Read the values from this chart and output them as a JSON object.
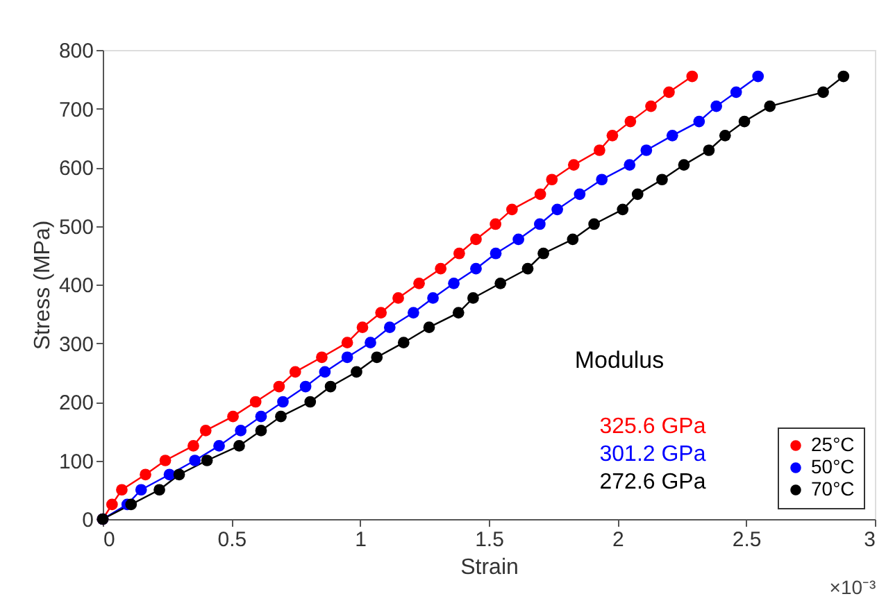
{
  "chart_data": {
    "type": "line",
    "xlabel": "Strain",
    "ylabel": "Stress (MPa)",
    "xlim": [
      0,
      3
    ],
    "xticks": [
      0,
      0.5,
      1,
      1.5,
      2,
      2.5,
      3
    ],
    "ylim": [
      0,
      800
    ],
    "yticks": [
      0,
      100,
      200,
      300,
      400,
      500,
      600,
      700,
      800
    ],
    "marker": "circle",
    "line_style": "solid",
    "grid": false,
    "legend": "bottom right",
    "annotations": [
      "Modulus",
      "325.6 GPa",
      "301.2 GPa",
      "272.6 GPa",
      "×10⁻³"
    ],
    "series": [
      {
        "name": "25°C",
        "color": "#ff0000",
        "x": [
          0,
          0.036,
          0.074,
          0.166,
          0.243,
          0.352,
          0.4,
          0.506,
          0.594,
          0.685,
          0.748,
          0.851,
          0.95,
          1.009,
          1.081,
          1.148,
          1.229,
          1.313,
          1.385,
          1.45,
          1.526,
          1.59,
          1.7,
          1.745,
          1.83,
          1.93,
          1.98,
          2.05,
          2.13,
          2.2,
          2.29
        ],
        "values": [
          0,
          25,
          50,
          76,
          100,
          125,
          151,
          175,
          200,
          226,
          251,
          276,
          301,
          327,
          352,
          377,
          402,
          427,
          453,
          477,
          503,
          528,
          554,
          579,
          604,
          629,
          654,
          678,
          704,
          728,
          755
        ]
      },
      {
        "name": "50°C",
        "color": "#0000ff",
        "x": [
          0,
          0.095,
          0.149,
          0.259,
          0.358,
          0.452,
          0.536,
          0.615,
          0.7,
          0.788,
          0.863,
          0.95,
          1.04,
          1.115,
          1.207,
          1.283,
          1.364,
          1.45,
          1.527,
          1.615,
          1.698,
          1.766,
          1.853,
          1.939,
          2.047,
          2.112,
          2.213,
          2.317,
          2.384,
          2.461,
          2.546
        ],
        "values": [
          0,
          25,
          50,
          76,
          100,
          125,
          151,
          175,
          200,
          226,
          251,
          276,
          301,
          327,
          352,
          377,
          402,
          427,
          453,
          477,
          503,
          528,
          554,
          579,
          604,
          629,
          654,
          678,
          704,
          728,
          755
        ]
      },
      {
        "name": "70°C",
        "color": "#000000",
        "x": [
          0,
          0.11,
          0.22,
          0.297,
          0.405,
          0.53,
          0.615,
          0.692,
          0.806,
          0.885,
          0.986,
          1.065,
          1.169,
          1.268,
          1.382,
          1.439,
          1.545,
          1.651,
          1.712,
          1.826,
          1.909,
          2.02,
          2.078,
          2.173,
          2.258,
          2.355,
          2.418,
          2.493,
          2.592,
          2.799,
          2.878
        ],
        "values": [
          0,
          25,
          50,
          76,
          100,
          125,
          151,
          175,
          200,
          226,
          251,
          276,
          301,
          327,
          352,
          377,
          402,
          427,
          453,
          477,
          503,
          528,
          554,
          579,
          604,
          629,
          654,
          678,
          704,
          728,
          755
        ]
      }
    ]
  }
}
